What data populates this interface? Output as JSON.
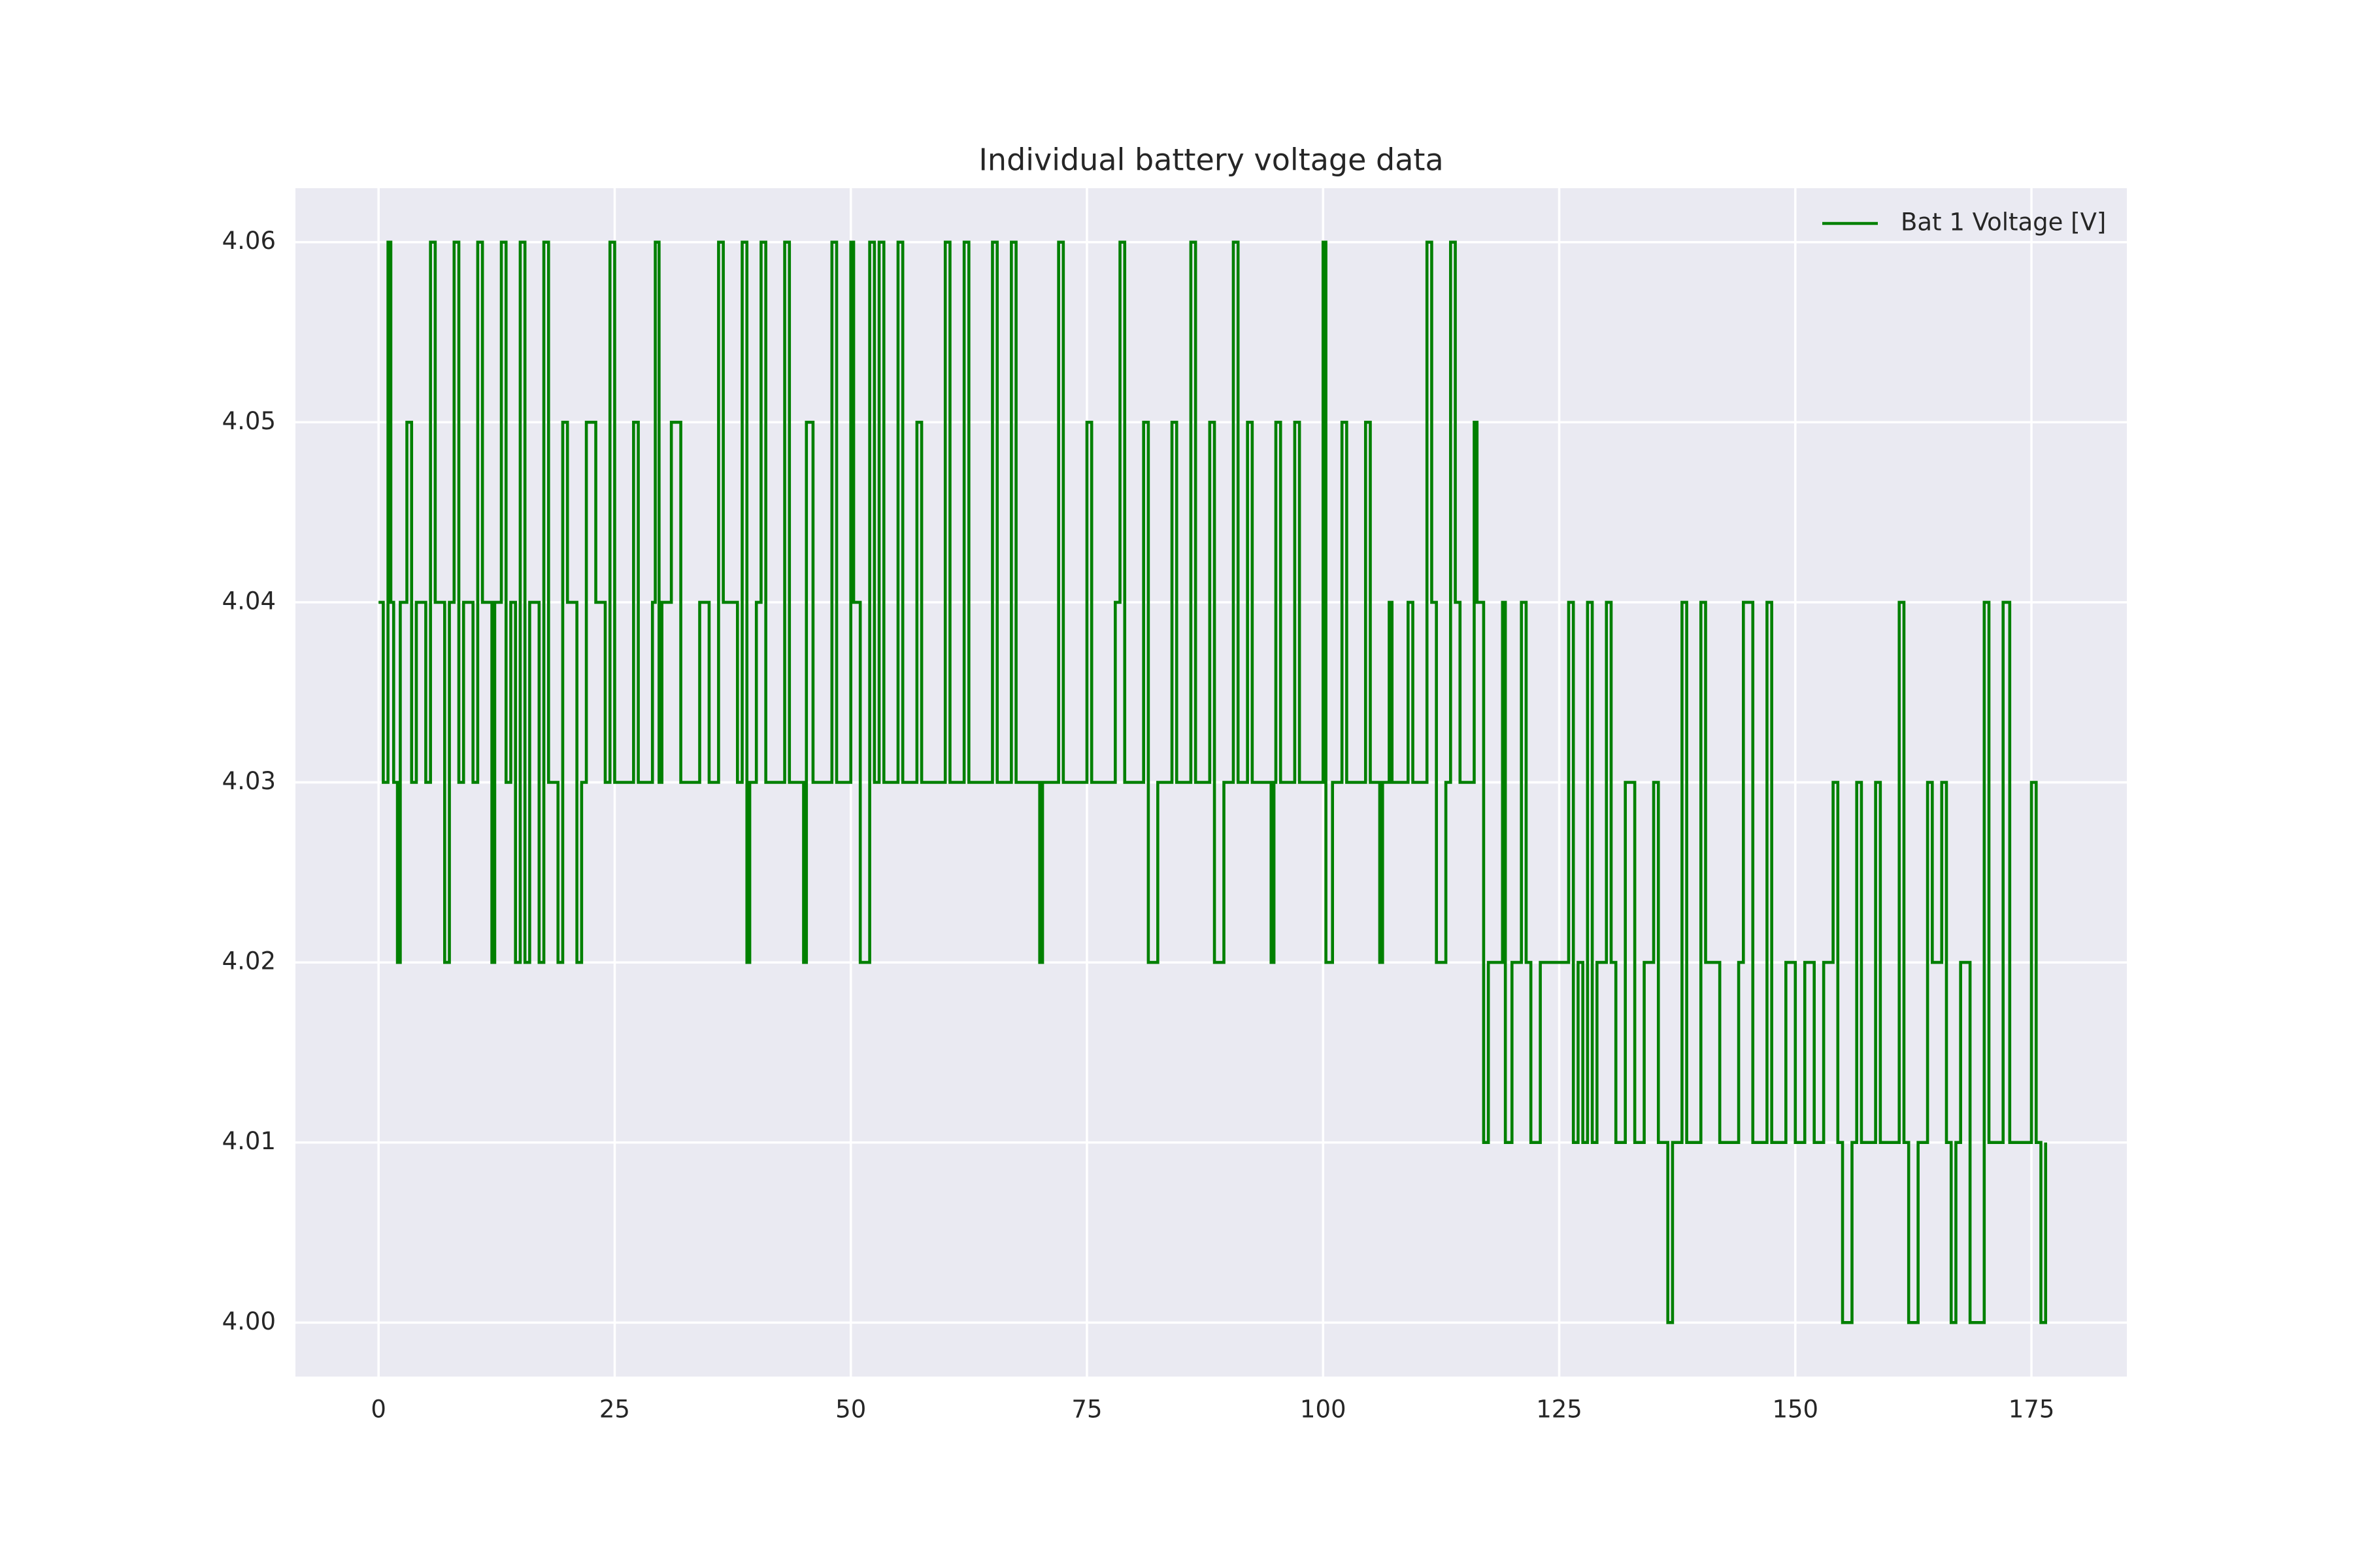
{
  "chart_data": {
    "type": "line",
    "step": true,
    "title": "Individual battery voltage data",
    "x": [
      0,
      0.5,
      1,
      1.3,
      1.6,
      2,
      2.3,
      3,
      3.5,
      4,
      5,
      5.5,
      6,
      7,
      7.5,
      8,
      8.5,
      9,
      10,
      10.5,
      11,
      12,
      12.3,
      13,
      13.5,
      14,
      14.5,
      15,
      15.5,
      16,
      17,
      17.5,
      18,
      19,
      19.5,
      20,
      21,
      21.5,
      22,
      23,
      24,
      24.5,
      25,
      27,
      27.5,
      29,
      29.3,
      29.7,
      30,
      31,
      32,
      34,
      35,
      36,
      36.5,
      38,
      38.5,
      39,
      39.3,
      40,
      40.5,
      41,
      43,
      43.5,
      45,
      45.3,
      46,
      48,
      48.5,
      50,
      50.3,
      51,
      52,
      52.5,
      53,
      53.5,
      55,
      55.5,
      57,
      57.5,
      60,
      60.5,
      62,
      62.5,
      65,
      65.5,
      67,
      67.5,
      70,
      70.3,
      72,
      72.5,
      75,
      75.5,
      78,
      78.5,
      79,
      81,
      81.5,
      82.5,
      84,
      84.5,
      86,
      86.5,
      88,
      88.5,
      89.5,
      90.5,
      91,
      92,
      92.5,
      94.5,
      94.8,
      95,
      95.5,
      97,
      97.5,
      100,
      100.3,
      101,
      102,
      102.5,
      104.5,
      105,
      106,
      106.3,
      107,
      107.3,
      109,
      109.5,
      111,
      111.5,
      112,
      113,
      113.5,
      114,
      114.5,
      116,
      116.3,
      117,
      117.5,
      119,
      119.3,
      120,
      121,
      121.5,
      122,
      123,
      126,
      126.5,
      127,
      127.5,
      128,
      128.5,
      129,
      130,
      130.5,
      131,
      132,
      133,
      134,
      135,
      135.5,
      136.5,
      137,
      138,
      138.5,
      140,
      140.5,
      142,
      144,
      144.5,
      145.5,
      147,
      147.5,
      149,
      150,
      151,
      152,
      153,
      154,
      154.5,
      155,
      156,
      156.5,
      157,
      158.5,
      159,
      161,
      161.5,
      162,
      163,
      164,
      164.5,
      165.5,
      166,
      166.5,
      167,
      167.5,
      168.5,
      170,
      170.5,
      172,
      172.7,
      175,
      175.5,
      176,
      176.5
    ],
    "series": [
      {
        "name": "Bat 1 Voltage [V]",
        "color": "#008000",
        "values": [
          4.04,
          4.03,
          4.06,
          4.04,
          4.03,
          4.02,
          4.04,
          4.05,
          4.03,
          4.04,
          4.03,
          4.06,
          4.04,
          4.02,
          4.04,
          4.06,
          4.03,
          4.04,
          4.03,
          4.06,
          4.04,
          4.02,
          4.04,
          4.06,
          4.03,
          4.04,
          4.02,
          4.06,
          4.02,
          4.04,
          4.02,
          4.06,
          4.03,
          4.02,
          4.05,
          4.04,
          4.02,
          4.03,
          4.05,
          4.04,
          4.03,
          4.06,
          4.03,
          4.05,
          4.03,
          4.04,
          4.06,
          4.03,
          4.04,
          4.05,
          4.03,
          4.04,
          4.03,
          4.06,
          4.04,
          4.03,
          4.06,
          4.02,
          4.03,
          4.04,
          4.06,
          4.03,
          4.06,
          4.03,
          4.02,
          4.05,
          4.03,
          4.06,
          4.03,
          4.06,
          4.04,
          4.02,
          4.06,
          4.03,
          4.06,
          4.03,
          4.06,
          4.03,
          4.05,
          4.03,
          4.06,
          4.03,
          4.06,
          4.03,
          4.06,
          4.03,
          4.06,
          4.03,
          4.02,
          4.03,
          4.06,
          4.03,
          4.05,
          4.03,
          4.04,
          4.06,
          4.03,
          4.05,
          4.02,
          4.03,
          4.05,
          4.03,
          4.06,
          4.03,
          4.05,
          4.02,
          4.03,
          4.06,
          4.03,
          4.05,
          4.03,
          4.02,
          4.03,
          4.05,
          4.03,
          4.05,
          4.03,
          4.06,
          4.02,
          4.03,
          4.05,
          4.03,
          4.05,
          4.03,
          4.02,
          4.03,
          4.04,
          4.03,
          4.04,
          4.03,
          4.06,
          4.04,
          4.02,
          4.03,
          4.06,
          4.04,
          4.03,
          4.05,
          4.04,
          4.01,
          4.02,
          4.04,
          4.01,
          4.02,
          4.04,
          4.02,
          4.01,
          4.02,
          4.04,
          4.01,
          4.02,
          4.01,
          4.04,
          4.01,
          4.02,
          4.04,
          4.02,
          4.01,
          4.03,
          4.01,
          4.02,
          4.03,
          4.01,
          4,
          4.01,
          4.04,
          4.01,
          4.04,
          4.02,
          4.01,
          4.02,
          4.04,
          4.01,
          4.04,
          4.01,
          4.02,
          4.01,
          4.02,
          4.01,
          4.02,
          4.03,
          4.01,
          4,
          4.01,
          4.03,
          4.01,
          4.03,
          4.01,
          4.04,
          4.01,
          4,
          4.01,
          4.03,
          4.02,
          4.03,
          4.01,
          4,
          4.01,
          4.02,
          4,
          4.04,
          4.01,
          4.04,
          4.01,
          4.03,
          4.01,
          4,
          4.01
        ]
      }
    ],
    "xlim": [
      -8.8,
      185.1
    ],
    "ylim": [
      3.997,
      4.063
    ],
    "xticks": [
      0,
      25,
      50,
      75,
      100,
      125,
      150,
      175
    ],
    "yticks": [
      {
        "value": 4,
        "label": "4.00"
      },
      4.01,
      4.02,
      4.03,
      4.04,
      4.05,
      4.06
    ],
    "grid": true,
    "legend": "upper right"
  }
}
